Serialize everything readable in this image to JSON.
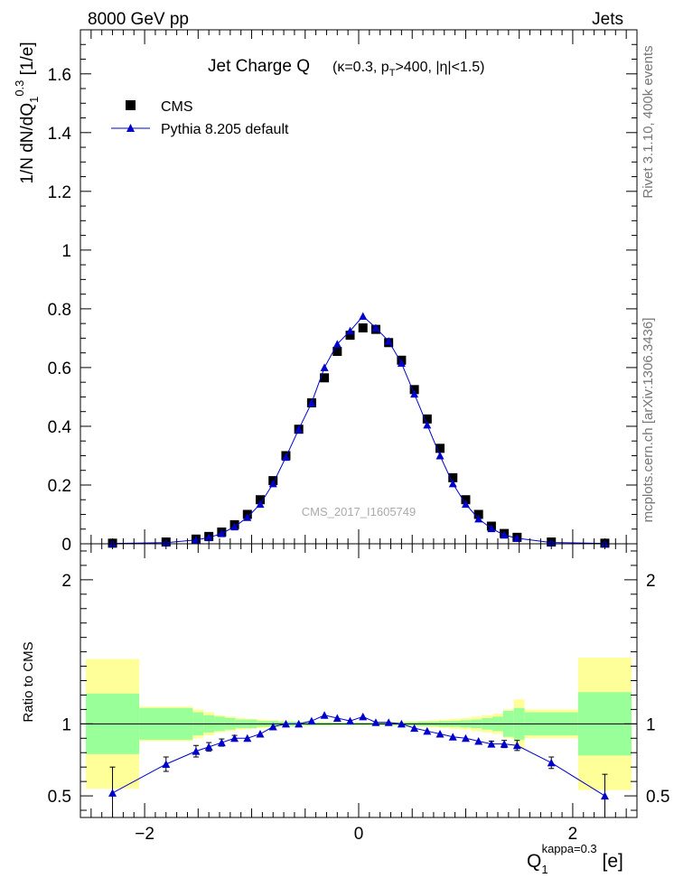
{
  "header": {
    "left": "8000 GeV pp",
    "right": "Jets"
  },
  "side_labels": {
    "rivet": "Rivet 3.1.10,  400k events",
    "mcplots": "mcplots.cern.ch [arXiv:1306.3436]"
  },
  "watermark": "CMS_2017_I1605749",
  "chart_data": [
    {
      "type": "scatter",
      "title_main": "Jet Charge Q",
      "title_params": "(κ=0.3, p_T>400, |η|<1.5)",
      "ylabel": "1/N dN/dQ_1^0.3 [1/e]",
      "xlim": [
        -2.6,
        2.6
      ],
      "ylim": [
        0,
        1.75
      ],
      "yticks": [
        0,
        0.2,
        0.4,
        0.6,
        0.8,
        1,
        1.2,
        1.4,
        1.6
      ],
      "ytick_labels": [
        "0",
        "0.2",
        "0.4",
        "0.6",
        "0.8",
        "1",
        "1.2",
        "1.4",
        "1.6"
      ],
      "legend": [
        "CMS",
        "Pythia 8.205 default"
      ],
      "series": [
        {
          "name": "CMS",
          "color": "#000000",
          "marker": "square",
          "x": [
            -2.3,
            -1.8,
            -1.52,
            -1.4,
            -1.28,
            -1.16,
            -1.04,
            -0.92,
            -0.8,
            -0.68,
            -0.56,
            -0.44,
            -0.32,
            -0.2,
            -0.08,
            0.04,
            0.16,
            0.28,
            0.4,
            0.52,
            0.64,
            0.76,
            0.88,
            1.0,
            1.12,
            1.24,
            1.36,
            1.48,
            1.8,
            2.3
          ],
          "y": [
            0.002,
            0.006,
            0.016,
            0.025,
            0.04,
            0.065,
            0.1,
            0.15,
            0.215,
            0.3,
            0.39,
            0.48,
            0.565,
            0.655,
            0.71,
            0.735,
            0.73,
            0.685,
            0.625,
            0.525,
            0.425,
            0.325,
            0.225,
            0.15,
            0.1,
            0.06,
            0.035,
            0.022,
            0.006,
            0.002
          ]
        },
        {
          "name": "Pythia 8.205 default",
          "color": "#0000cc",
          "marker": "triangle",
          "x": [
            -2.3,
            -1.8,
            -1.52,
            -1.4,
            -1.28,
            -1.16,
            -1.04,
            -0.92,
            -0.8,
            -0.68,
            -0.56,
            -0.44,
            -0.32,
            -0.2,
            -0.08,
            0.04,
            0.16,
            0.28,
            0.4,
            0.52,
            0.64,
            0.76,
            0.88,
            1.0,
            1.12,
            1.24,
            1.36,
            1.48,
            1.8,
            2.3
          ],
          "y": [
            0.001,
            0.004,
            0.013,
            0.021,
            0.035,
            0.058,
            0.09,
            0.135,
            0.205,
            0.295,
            0.39,
            0.48,
            0.6,
            0.68,
            0.725,
            0.775,
            0.735,
            0.69,
            0.615,
            0.51,
            0.405,
            0.3,
            0.205,
            0.135,
            0.085,
            0.052,
            0.03,
            0.019,
            0.0044,
            0.001
          ]
        }
      ]
    },
    {
      "type": "scatter",
      "ylabel": "Ratio to CMS",
      "xlabel": "Q_1^kappa=0.3 [e]",
      "xlim": [
        -2.6,
        2.6
      ],
      "ylim": [
        0.35,
        2.25
      ],
      "xticks": [
        -2,
        0,
        2
      ],
      "xtick_labels": [
        "−2",
        "0",
        "2"
      ],
      "yticks": [
        0.5,
        1,
        2
      ],
      "ytick_labels": [
        "0.5",
        "1",
        "2"
      ],
      "bands": {
        "edges": [
          -2.55,
          -2.05,
          -1.55,
          -1.45,
          -1.35,
          -1.25,
          -1.15,
          -1.05,
          -0.95,
          -0.85,
          -0.75,
          -0.65,
          -0.55,
          -0.45,
          -0.35,
          -0.25,
          -0.15,
          -0.05,
          0.05,
          0.15,
          0.25,
          0.35,
          0.45,
          0.55,
          0.65,
          0.75,
          0.85,
          0.95,
          1.05,
          1.15,
          1.25,
          1.35,
          1.45,
          1.55,
          2.05,
          2.55
        ],
        "stat_half": [
          0.21,
          0.11,
          0.08,
          0.06,
          0.05,
          0.04,
          0.03,
          0.03,
          0.02,
          0.02,
          0.015,
          0.015,
          0.012,
          0.01,
          0.01,
          0.008,
          0.008,
          0.008,
          0.008,
          0.008,
          0.01,
          0.01,
          0.012,
          0.015,
          0.015,
          0.02,
          0.02,
          0.025,
          0.03,
          0.04,
          0.05,
          0.09,
          0.11,
          0.08,
          0.22
        ],
        "total_half": [
          0.45,
          0.12,
          0.1,
          0.08,
          0.06,
          0.05,
          0.04,
          0.035,
          0.03,
          0.025,
          0.02,
          0.018,
          0.015,
          0.012,
          0.012,
          0.01,
          0.01,
          0.01,
          0.01,
          0.012,
          0.012,
          0.015,
          0.018,
          0.02,
          0.025,
          0.03,
          0.035,
          0.04,
          0.05,
          0.06,
          0.07,
          0.1,
          0.17,
          0.1,
          0.46
        ]
      },
      "series": [
        {
          "name": "Pythia 8.205 default / CMS",
          "color": "#0000cc",
          "marker": "triangle",
          "x": [
            -2.3,
            -1.8,
            -1.52,
            -1.4,
            -1.28,
            -1.16,
            -1.04,
            -0.92,
            -0.8,
            -0.68,
            -0.56,
            -0.44,
            -0.32,
            -0.2,
            -0.08,
            0.04,
            0.16,
            0.28,
            0.4,
            0.52,
            0.64,
            0.76,
            0.88,
            1.0,
            1.12,
            1.24,
            1.36,
            1.48,
            1.8,
            2.3
          ],
          "y": [
            0.52,
            0.72,
            0.81,
            0.84,
            0.87,
            0.9,
            0.9,
            0.93,
            0.98,
            1.0,
            1.0,
            1.02,
            1.06,
            1.04,
            1.02,
            1.05,
            1.01,
            1.01,
            1.0,
            0.97,
            0.95,
            0.93,
            0.91,
            0.9,
            0.88,
            0.86,
            0.86,
            0.85,
            0.73,
            0.5
          ],
          "err": [
            0.18,
            0.05,
            0.04,
            0.03,
            0.025,
            0.02,
            0.015,
            0.012,
            0.01,
            0.008,
            0.008,
            0.007,
            0.006,
            0.006,
            0.006,
            0.006,
            0.006,
            0.006,
            0.006,
            0.007,
            0.008,
            0.009,
            0.01,
            0.012,
            0.015,
            0.02,
            0.025,
            0.035,
            0.04,
            0.15
          ]
        }
      ]
    }
  ]
}
